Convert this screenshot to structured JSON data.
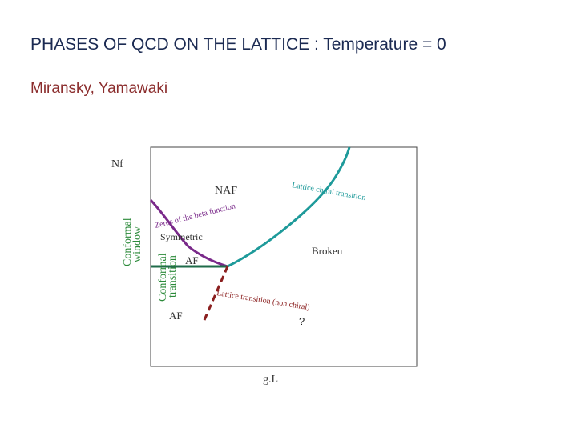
{
  "slide": {
    "title": "PHASES OF QCD ON THE LATTICE : Temperature = 0",
    "subtitle": "Miransky, Yamawaki"
  },
  "diagram": {
    "y_axis_label": "Nf",
    "x_axis_label": "g.L",
    "regions": {
      "naf": "NAF",
      "symmetric": "Symmetric",
      "af_upper": "AF",
      "af_lower": "AF",
      "broken": "Broken"
    },
    "curve_labels": {
      "lattice_chiral": "Lattice chiral transition",
      "beta_zeros": "Zeros of the beta function",
      "lattice_nonchiral": "Lattice transition (non chiral)"
    },
    "side_labels": {
      "conformal_window_1": "Conformal",
      "conformal_window_2": "window",
      "conformal_transition_1": "Conformal",
      "conformal_transition_2": "transition"
    },
    "unknown_marker": "?",
    "colors": {
      "teal": "#1e9a9a",
      "purple": "#7a2a8a",
      "dark_red": "#8b2020",
      "green_line": "#1f6b4a",
      "green_text": "#2c8a3a",
      "title_navy": "#1b2a52"
    }
  }
}
